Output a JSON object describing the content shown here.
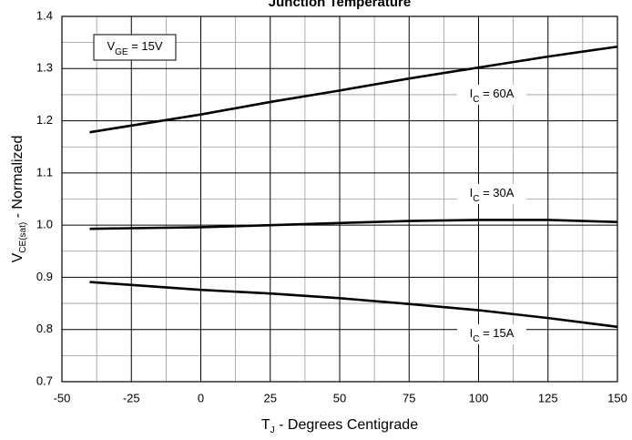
{
  "chart_data": {
    "type": "line",
    "title": "Junction Temperature",
    "xlabel": {
      "main": "T",
      "sub": "J",
      "rest": " - Degrees Centigrade"
    },
    "ylabel": {
      "main": "V",
      "sub": "CE(sat)",
      "rest": " - Normalized"
    },
    "annotation": {
      "main": "V",
      "sub": "GE",
      "rest": " = 15V"
    },
    "x": [
      -40,
      0,
      25,
      50,
      75,
      100,
      125,
      150
    ],
    "series": [
      {
        "label": {
          "main": "I",
          "sub": "C",
          "rest": " = 60A"
        },
        "color": "#000000",
        "values": [
          1.178,
          1.212,
          1.236,
          1.258,
          1.281,
          1.302,
          1.323,
          1.342
        ]
      },
      {
        "label": {
          "main": "I",
          "sub": "C",
          "rest": " = 30A"
        },
        "color": "#000000",
        "values": [
          0.993,
          0.996,
          1.0,
          1.004,
          1.008,
          1.01,
          1.01,
          1.006
        ]
      },
      {
        "label": {
          "main": "I",
          "sub": "C",
          "rest": " = 15A"
        },
        "color": "#000000",
        "values": [
          0.891,
          0.876,
          0.869,
          0.86,
          0.849,
          0.837,
          0.822,
          0.805
        ]
      }
    ],
    "xlim": [
      -50,
      150
    ],
    "ylim": [
      0.7,
      1.4
    ],
    "xticks": [
      -50,
      -25,
      0,
      25,
      50,
      75,
      100,
      125,
      150
    ],
    "yticks": [
      0.7,
      0.8,
      0.9,
      {
        "value": 1.0,
        "label": "1.0"
      },
      1.1,
      1.2,
      1.3,
      1.4
    ],
    "xminorticks": [
      -37.5,
      -12.5,
      12.5,
      37.5,
      62.5,
      87.5,
      112.5,
      137.5
    ],
    "yminorticks": [
      0.75,
      0.85,
      0.95,
      1.05,
      1.15,
      1.25,
      1.35
    ],
    "grid": true
  }
}
